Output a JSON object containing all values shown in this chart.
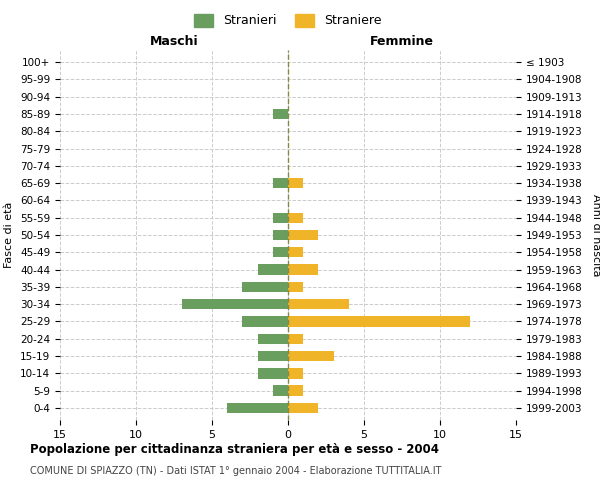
{
  "age_groups": [
    "100+",
    "95-99",
    "90-94",
    "85-89",
    "80-84",
    "75-79",
    "70-74",
    "65-69",
    "60-64",
    "55-59",
    "50-54",
    "45-49",
    "40-44",
    "35-39",
    "30-34",
    "25-29",
    "20-24",
    "15-19",
    "10-14",
    "5-9",
    "0-4"
  ],
  "birth_years": [
    "≤ 1903",
    "1904-1908",
    "1909-1913",
    "1914-1918",
    "1919-1923",
    "1924-1928",
    "1929-1933",
    "1934-1938",
    "1939-1943",
    "1944-1948",
    "1949-1953",
    "1954-1958",
    "1959-1963",
    "1964-1968",
    "1969-1973",
    "1974-1978",
    "1979-1983",
    "1984-1988",
    "1989-1993",
    "1994-1998",
    "1999-2003"
  ],
  "males": [
    0,
    0,
    0,
    1,
    0,
    0,
    0,
    1,
    0,
    1,
    1,
    1,
    2,
    3,
    7,
    3,
    2,
    2,
    2,
    1,
    4
  ],
  "females": [
    0,
    0,
    0,
    0,
    0,
    0,
    0,
    1,
    0,
    1,
    2,
    1,
    2,
    1,
    4,
    12,
    1,
    3,
    1,
    1,
    2
  ],
  "male_color": "#6a9e5f",
  "female_color": "#f0b429",
  "title": "Popolazione per cittadinanza straniera per età e sesso - 2004",
  "subtitle": "COMUNE DI SPIAZZO (TN) - Dati ISTAT 1° gennaio 2004 - Elaborazione TUTTITALIA.IT",
  "ylabel_left": "Fasce di età",
  "ylabel_right": "Anni di nascita",
  "xlabel_left": "Maschi",
  "xlabel_right": "Femmine",
  "legend_male": "Stranieri",
  "legend_female": "Straniere",
  "xlim": 15,
  "background_color": "#ffffff",
  "grid_color": "#cccccc"
}
